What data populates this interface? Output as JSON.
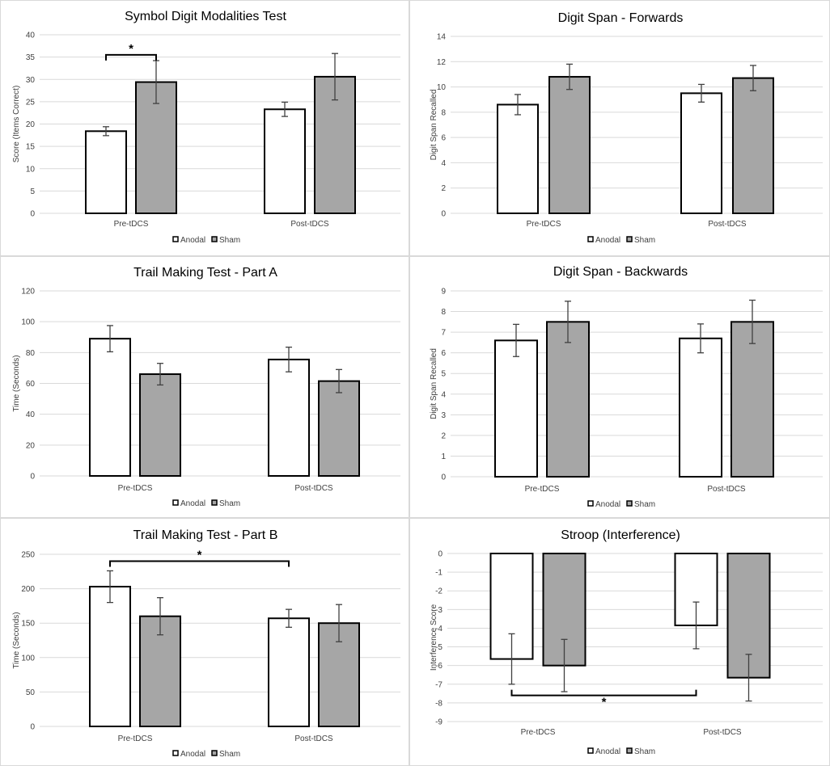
{
  "legend": {
    "anodal": "Anodal",
    "sham": "Sham"
  },
  "colors": {
    "anodal": "#ffffff",
    "sham": "#a6a6a6",
    "edge": "#000000",
    "grid": "#d9d9d9"
  },
  "chart_data": [
    {
      "id": "sdmt",
      "type": "bar",
      "title": "Symbol Digit Modalities Test",
      "ylabel": "Score (Items Correct)",
      "xlabel": "",
      "categories": [
        "Pre-tDCS",
        "Post-tDCS"
      ],
      "ylim": [
        0,
        40
      ],
      "yticks": [
        0,
        5,
        10,
        15,
        20,
        25,
        30,
        35,
        40
      ],
      "series": [
        {
          "name": "Anodal",
          "values": [
            18.4,
            23.3
          ],
          "errors": [
            1.0,
            1.6
          ]
        },
        {
          "name": "Sham",
          "values": [
            29.4,
            30.6
          ],
          "errors": [
            4.8,
            5.2
          ]
        }
      ],
      "significance": [
        {
          "label": "*",
          "from": [
            0,
            0
          ],
          "to": [
            0,
            1
          ],
          "level": 35.5
        }
      ]
    },
    {
      "id": "dsf",
      "type": "bar",
      "title": "Digit Span - Forwards",
      "ylabel": "Digit Span Recalled",
      "xlabel": "",
      "categories": [
        "Pre-tDCS",
        "Post-tDCS"
      ],
      "ylim": [
        0,
        14
      ],
      "yticks": [
        0,
        2,
        4,
        6,
        8,
        10,
        12,
        14
      ],
      "series": [
        {
          "name": "Anodal",
          "values": [
            8.6,
            9.5
          ],
          "errors": [
            0.8,
            0.7
          ]
        },
        {
          "name": "Sham",
          "values": [
            10.8,
            10.7
          ],
          "errors": [
            1.0,
            1.0
          ]
        }
      ],
      "significance": []
    },
    {
      "id": "tmta",
      "type": "bar",
      "title": "Trail Making Test - Part A",
      "ylabel": "Time (Seconds)",
      "xlabel": "",
      "categories": [
        "Pre-tDCS",
        "Post-tDCS"
      ],
      "ylim": [
        0,
        120
      ],
      "yticks": [
        0,
        20,
        40,
        60,
        80,
        100,
        120
      ],
      "series": [
        {
          "name": "Anodal",
          "values": [
            89,
            75.5
          ],
          "errors": [
            8.5,
            8
          ]
        },
        {
          "name": "Sham",
          "values": [
            66,
            61.5
          ],
          "errors": [
            7,
            7.5
          ]
        }
      ],
      "significance": []
    },
    {
      "id": "dsb",
      "type": "bar",
      "title": "Digit Span - Backwards",
      "ylabel": "Digit Span Recalled",
      "xlabel": "",
      "categories": [
        "Pre-tDCS",
        "Post-tDCS"
      ],
      "ylim": [
        0,
        9
      ],
      "yticks": [
        0,
        1,
        2,
        3,
        4,
        5,
        6,
        7,
        8,
        9
      ],
      "series": [
        {
          "name": "Anodal",
          "values": [
            6.6,
            6.7
          ],
          "errors": [
            0.78,
            0.7
          ]
        },
        {
          "name": "Sham",
          "values": [
            7.5,
            7.5
          ],
          "errors": [
            1.0,
            1.05
          ]
        }
      ],
      "significance": []
    },
    {
      "id": "tmtb",
      "type": "bar",
      "title": "Trail Making Test - Part B",
      "ylabel": "Time (Seconds)",
      "xlabel": "",
      "categories": [
        "Pre-tDCS",
        "Post-tDCS"
      ],
      "ylim": [
        0,
        250
      ],
      "yticks": [
        0,
        50,
        100,
        150,
        200,
        250
      ],
      "series": [
        {
          "name": "Anodal",
          "values": [
            203,
            157
          ],
          "errors": [
            23,
            13
          ]
        },
        {
          "name": "Sham",
          "values": [
            160,
            150
          ],
          "errors": [
            27,
            27
          ]
        }
      ],
      "significance": [
        {
          "label": "*",
          "from": [
            0,
            0
          ],
          "to": [
            1,
            0
          ],
          "level": 240
        }
      ]
    },
    {
      "id": "stroop",
      "type": "bar",
      "title": "Stroop (Interference)",
      "ylabel": "Interference Score",
      "xlabel": "",
      "categories": [
        "Pre-tDCS",
        "Post-tDCS"
      ],
      "ylim": [
        -9,
        0
      ],
      "yticks": [
        0,
        -1,
        -2,
        -3,
        -4,
        -5,
        -6,
        -7,
        -8,
        -9
      ],
      "series": [
        {
          "name": "Anodal",
          "values": [
            -5.65,
            -3.85
          ],
          "errors": [
            1.35,
            1.25
          ]
        },
        {
          "name": "Sham",
          "values": [
            -6.0,
            -6.65
          ],
          "errors": [
            1.4,
            1.25
          ]
        }
      ],
      "significance": [
        {
          "label": "*",
          "from": [
            0,
            0
          ],
          "to": [
            1,
            0
          ],
          "level": -7.6
        }
      ]
    }
  ]
}
